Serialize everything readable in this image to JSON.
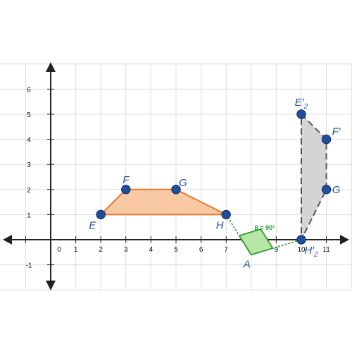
{
  "graph": {
    "x_range": [
      -1,
      12
    ],
    "y_range": [
      -2,
      7
    ],
    "x_ticks": [
      {
        "value": 0,
        "label": "0"
      },
      {
        "value": 1,
        "label": "1"
      },
      {
        "value": 2,
        "label": "2"
      },
      {
        "value": 3,
        "label": "3"
      },
      {
        "value": 4,
        "label": "4"
      },
      {
        "value": 5,
        "label": "5"
      },
      {
        "value": 6,
        "label": "6"
      },
      {
        "value": 7,
        "label": "7"
      },
      {
        "value": 8,
        "label": "8"
      },
      {
        "value": 9,
        "label": "9"
      },
      {
        "value": 10,
        "label": "10"
      },
      {
        "value": 11,
        "label": "11"
      }
    ],
    "y_ticks": [
      {
        "value": 6,
        "label": "6"
      },
      {
        "value": 5,
        "label": "5"
      },
      {
        "value": 4,
        "label": "4"
      },
      {
        "value": 3,
        "label": "3"
      },
      {
        "value": 2,
        "label": "2"
      },
      {
        "value": 1,
        "label": "1"
      },
      {
        "value": -1,
        "label": "-1"
      }
    ]
  },
  "original_shape": {
    "fill": "#f9c9a4",
    "stroke": "#e8782e",
    "points": [
      {
        "name": "E",
        "x": 2,
        "y": 1,
        "label": "E"
      },
      {
        "name": "F",
        "x": 3,
        "y": 2,
        "label": "F"
      },
      {
        "name": "G",
        "x": 5,
        "y": 2,
        "label": "G"
      },
      {
        "name": "H",
        "x": 7,
        "y": 1,
        "label": "H"
      }
    ]
  },
  "rotated_shape": {
    "fill": "#d4d4d4",
    "stroke": "#555555",
    "points": [
      {
        "name": "E2",
        "x": 10,
        "y": 5,
        "label": "E′",
        "sub": "2"
      },
      {
        "name": "F2",
        "x": 11,
        "y": 4,
        "label": "F′",
        "sub": ""
      },
      {
        "name": "G2",
        "x": 11,
        "y": 2,
        "label": "G",
        "sub": ""
      },
      {
        "name": "H2",
        "x": 10,
        "y": 0,
        "label": "H′",
        "sub": "2"
      }
    ]
  },
  "rotation": {
    "center": {
      "x": 8,
      "y": -0.6,
      "label": "A"
    },
    "angle_label": "β = 90°",
    "color": "#2a9d2a",
    "square_fill": "#b8e6a6"
  },
  "colors": {
    "point": "#1f4f9c",
    "grid": "#dddddd",
    "axis": "#222222"
  }
}
